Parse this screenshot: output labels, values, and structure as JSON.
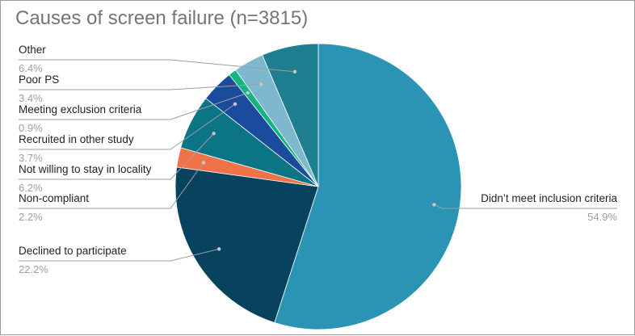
{
  "chart_data": {
    "type": "pie",
    "title": "Causes of screen failure (n=3815)",
    "slices": [
      {
        "label": "Didn’t meet inclusion criteria",
        "value_label": "54.9%",
        "value": 54.9,
        "color": "#2b93b4"
      },
      {
        "label": "Declined to participate",
        "value_label": "22.2%",
        "value": 22.2,
        "color": "#07425e"
      },
      {
        "label": "Non-compliant",
        "value_label": "2.2%",
        "value": 2.2,
        "color": "#f07248"
      },
      {
        "label": "Not willing to stay in locality",
        "value_label": "6.2%",
        "value": 6.2,
        "color": "#0b7586"
      },
      {
        "label": "Recruited in other study",
        "value_label": "3.7%",
        "value": 3.7,
        "color": "#1a4b9c"
      },
      {
        "label": "Meeting exclusion criteria",
        "value_label": "0.9%",
        "value": 0.9,
        "color": "#14b380"
      },
      {
        "label": "Poor PS",
        "value_label": "3.4%",
        "value": 3.4,
        "color": "#7eb8cf"
      },
      {
        "label": "Other",
        "value_label": "6.4%",
        "value": 6.4,
        "color": "#1f7f91"
      }
    ],
    "legend": "none"
  }
}
